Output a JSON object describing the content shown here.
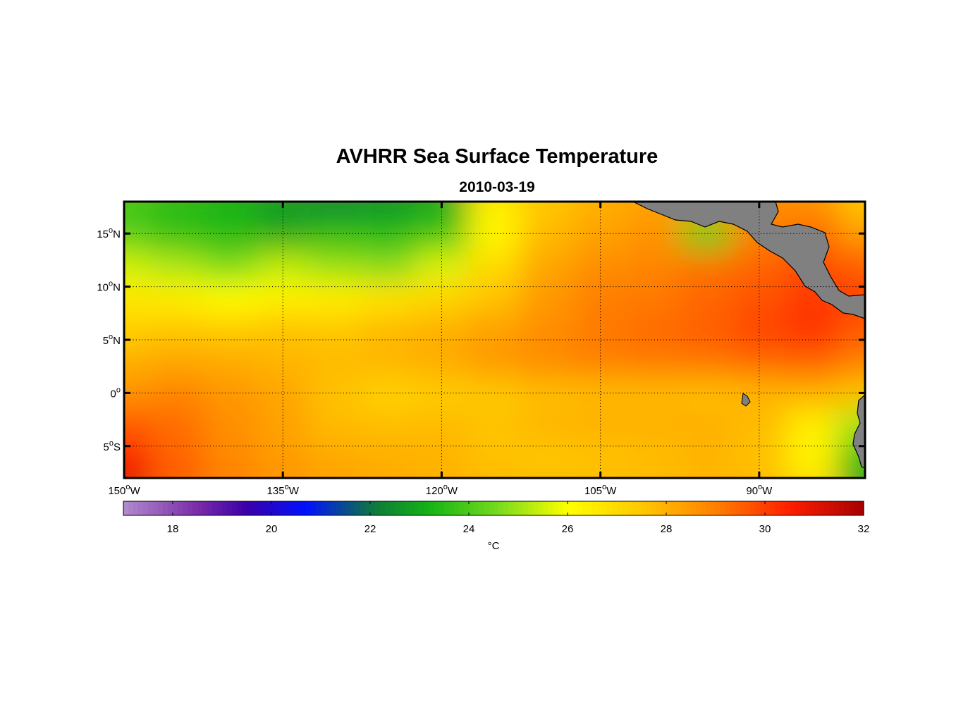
{
  "title": "AVHRR Sea Surface Temperature",
  "subtitle": "2010-03-19",
  "chart_data": {
    "type": "heatmap",
    "title": "AVHRR Sea Surface Temperature",
    "subtitle": "2010-03-19",
    "x_range": [
      -150,
      -80
    ],
    "y_range": [
      -8,
      18
    ],
    "x_ticks": [
      {
        "value": -150,
        "label": "150",
        "hemisphere": "W"
      },
      {
        "value": -135,
        "label": "135",
        "hemisphere": "W"
      },
      {
        "value": -120,
        "label": "120",
        "hemisphere": "W"
      },
      {
        "value": -105,
        "label": "105",
        "hemisphere": "W"
      },
      {
        "value": -90,
        "label": "90",
        "hemisphere": "W"
      }
    ],
    "y_ticks": [
      {
        "value": 15,
        "label": "15",
        "hemisphere": "N"
      },
      {
        "value": 10,
        "label": "10",
        "hemisphere": "N"
      },
      {
        "value": 5,
        "label": "5",
        "hemisphere": "N"
      },
      {
        "value": 0,
        "label": "0",
        "hemisphere": ""
      },
      {
        "value": -5,
        "label": "5",
        "hemisphere": "S"
      }
    ],
    "grid": true,
    "grid_style": "dotted",
    "colorbar": {
      "range": [
        17,
        32
      ],
      "ticks": [
        18,
        20,
        22,
        24,
        26,
        28,
        30,
        32
      ],
      "label": "°C",
      "stops": [
        {
          "t": 17,
          "color": "#b08ccc"
        },
        {
          "t": 18.5,
          "color": "#7a2ba8"
        },
        {
          "t": 19.5,
          "color": "#3a00a8"
        },
        {
          "t": 20.7,
          "color": "#0010ff"
        },
        {
          "t": 22.1,
          "color": "#0f7a3a"
        },
        {
          "t": 23.2,
          "color": "#14b414"
        },
        {
          "t": 24.5,
          "color": "#6fd81e"
        },
        {
          "t": 26,
          "color": "#ffff00"
        },
        {
          "t": 27.5,
          "color": "#ffc800"
        },
        {
          "t": 29,
          "color": "#ff8000"
        },
        {
          "t": 30.5,
          "color": "#ff1e00"
        },
        {
          "t": 32,
          "color": "#a50000"
        }
      ]
    },
    "land_color": "#808080",
    "sst_field_c": {
      "lon": [
        -150,
        -145,
        -140,
        -135,
        -130,
        -125,
        -120,
        -115,
        -110,
        -105,
        -100,
        -95,
        -90,
        -85,
        -80
      ],
      "lat": [
        18,
        15,
        12,
        9,
        6,
        3,
        0,
        -3,
        -6,
        -8
      ],
      "values": [
        [
          23.9,
          23.5,
          23.2,
          22.7,
          22.4,
          22.6,
          23.0,
          26.5,
          27.5,
          28.0,
          28.3,
          28.5,
          28.8,
          28.6,
          27.5
        ],
        [
          24.1,
          23.6,
          23.4,
          23.0,
          23.5,
          23.4,
          23.8,
          26.2,
          27.8,
          28.3,
          28.6,
          24.2,
          29.0,
          29.3,
          28.4
        ],
        [
          25.5,
          25.1,
          24.6,
          25.3,
          24.9,
          24.7,
          25.6,
          27.0,
          28.2,
          28.7,
          28.9,
          29.2,
          29.4,
          29.8,
          29.5
        ],
        [
          26.6,
          26.4,
          26.0,
          26.3,
          26.4,
          26.7,
          27.1,
          27.6,
          28.5,
          29.0,
          29.1,
          29.4,
          29.7,
          30.1,
          29.9
        ],
        [
          27.3,
          27.5,
          27.4,
          27.6,
          27.5,
          27.8,
          28.0,
          28.3,
          28.7,
          29.1,
          29.3,
          29.5,
          29.9,
          30.2,
          29.6
        ],
        [
          28.0,
          28.2,
          28.1,
          27.9,
          27.8,
          27.9,
          28.1,
          28.5,
          28.8,
          29.0,
          29.1,
          29.2,
          29.4,
          29.5,
          29.0
        ],
        [
          28.6,
          28.9,
          28.5,
          28.2,
          27.6,
          27.2,
          27.4,
          27.5,
          27.7,
          27.8,
          27.8,
          27.7,
          27.9,
          28.0,
          27.6
        ],
        [
          29.6,
          29.3,
          28.7,
          28.3,
          27.8,
          27.7,
          27.8,
          27.6,
          27.9,
          28.0,
          28.0,
          28.0,
          27.8,
          26.4,
          25.0
        ],
        [
          30.4,
          29.4,
          28.8,
          28.4,
          28.1,
          28.0,
          27.9,
          27.6,
          27.5,
          27.6,
          27.7,
          27.9,
          27.6,
          26.3,
          23.6
        ],
        [
          31.0,
          29.6,
          29.0,
          28.6,
          28.3,
          28.1,
          28.0,
          27.8,
          27.7,
          27.7,
          27.8,
          27.9,
          27.8,
          26.7,
          23.0
        ]
      ]
    }
  }
}
